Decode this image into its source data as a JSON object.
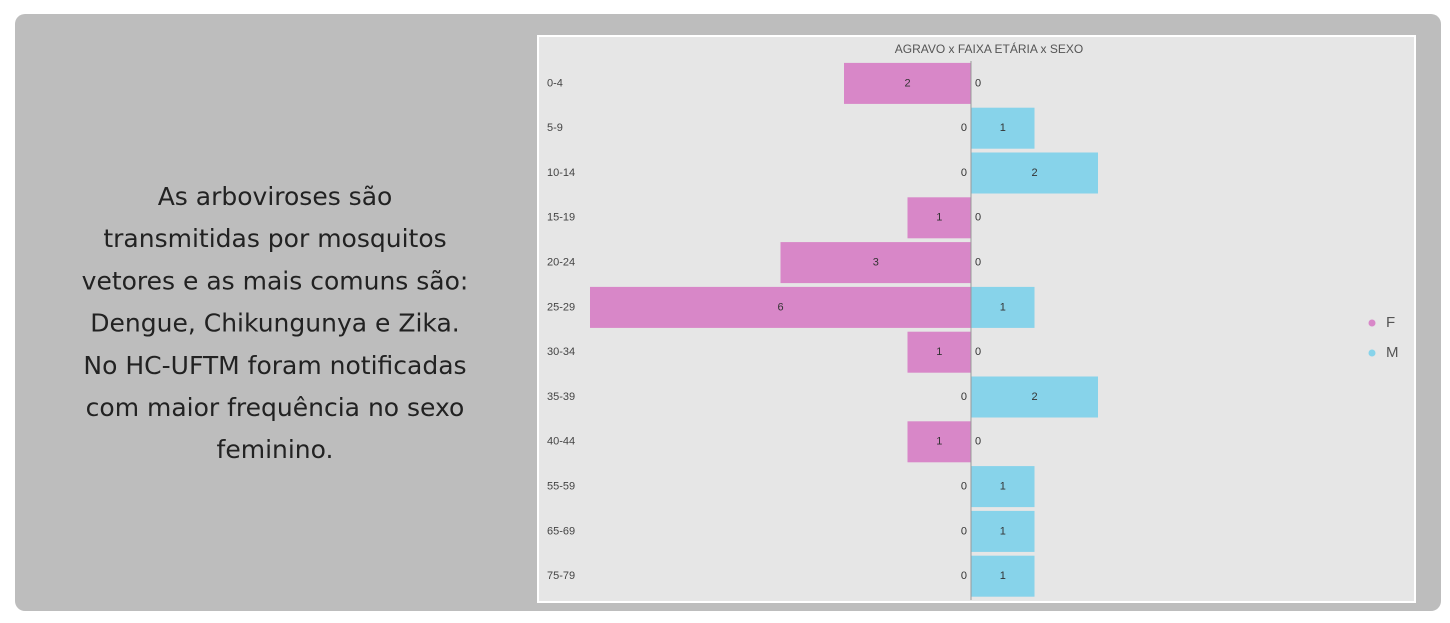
{
  "text_lines": [
    "As arboviroses são",
    "transmitidas por mosquitos",
    "vetores e as mais comuns são:",
    "Dengue,  Chikungunya  e Zika.",
    "No HC-UFTM foram notificadas",
    "com maior frequência  no sexo",
    "feminino."
  ],
  "chart_data": {
    "type": "bar",
    "orientation": "horizontal-butterfly",
    "title": "AGRAVO x FAIXA ETÁRIA x SEXO",
    "categories": [
      "0-4",
      "5-9",
      "10-14",
      "15-19",
      "20-24",
      "25-29",
      "30-34",
      "35-39",
      "40-44",
      "55-59",
      "65-69",
      "75-79"
    ],
    "series": [
      {
        "name": "F",
        "color": "#d887c8",
        "values": [
          2,
          0,
          0,
          1,
          3,
          6,
          1,
          0,
          1,
          0,
          0,
          0
        ]
      },
      {
        "name": "M",
        "color": "#87d3ea",
        "values": [
          0,
          1,
          2,
          0,
          0,
          1,
          0,
          2,
          0,
          1,
          1,
          1
        ]
      }
    ],
    "legend": "right"
  }
}
